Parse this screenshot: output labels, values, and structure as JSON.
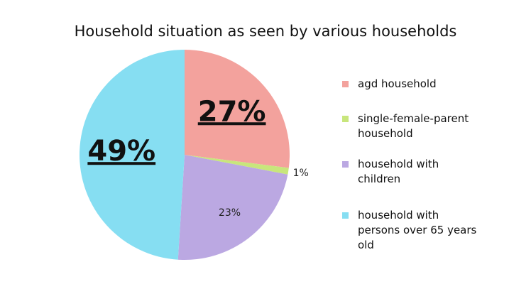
{
  "chart_data": {
    "type": "pie",
    "title": "Household situation as seen by various households",
    "categories": [
      "agd household",
      "single-female-parent household",
      "household with children",
      "household with persons over 65 years old"
    ],
    "values": [
      27,
      1,
      23,
      49
    ],
    "value_labels": [
      "27%",
      "1%",
      "23%",
      "49%"
    ],
    "colors": [
      "#f3a29d",
      "#c8e67c",
      "#bba8e2",
      "#86def2"
    ],
    "legend": "right"
  }
}
